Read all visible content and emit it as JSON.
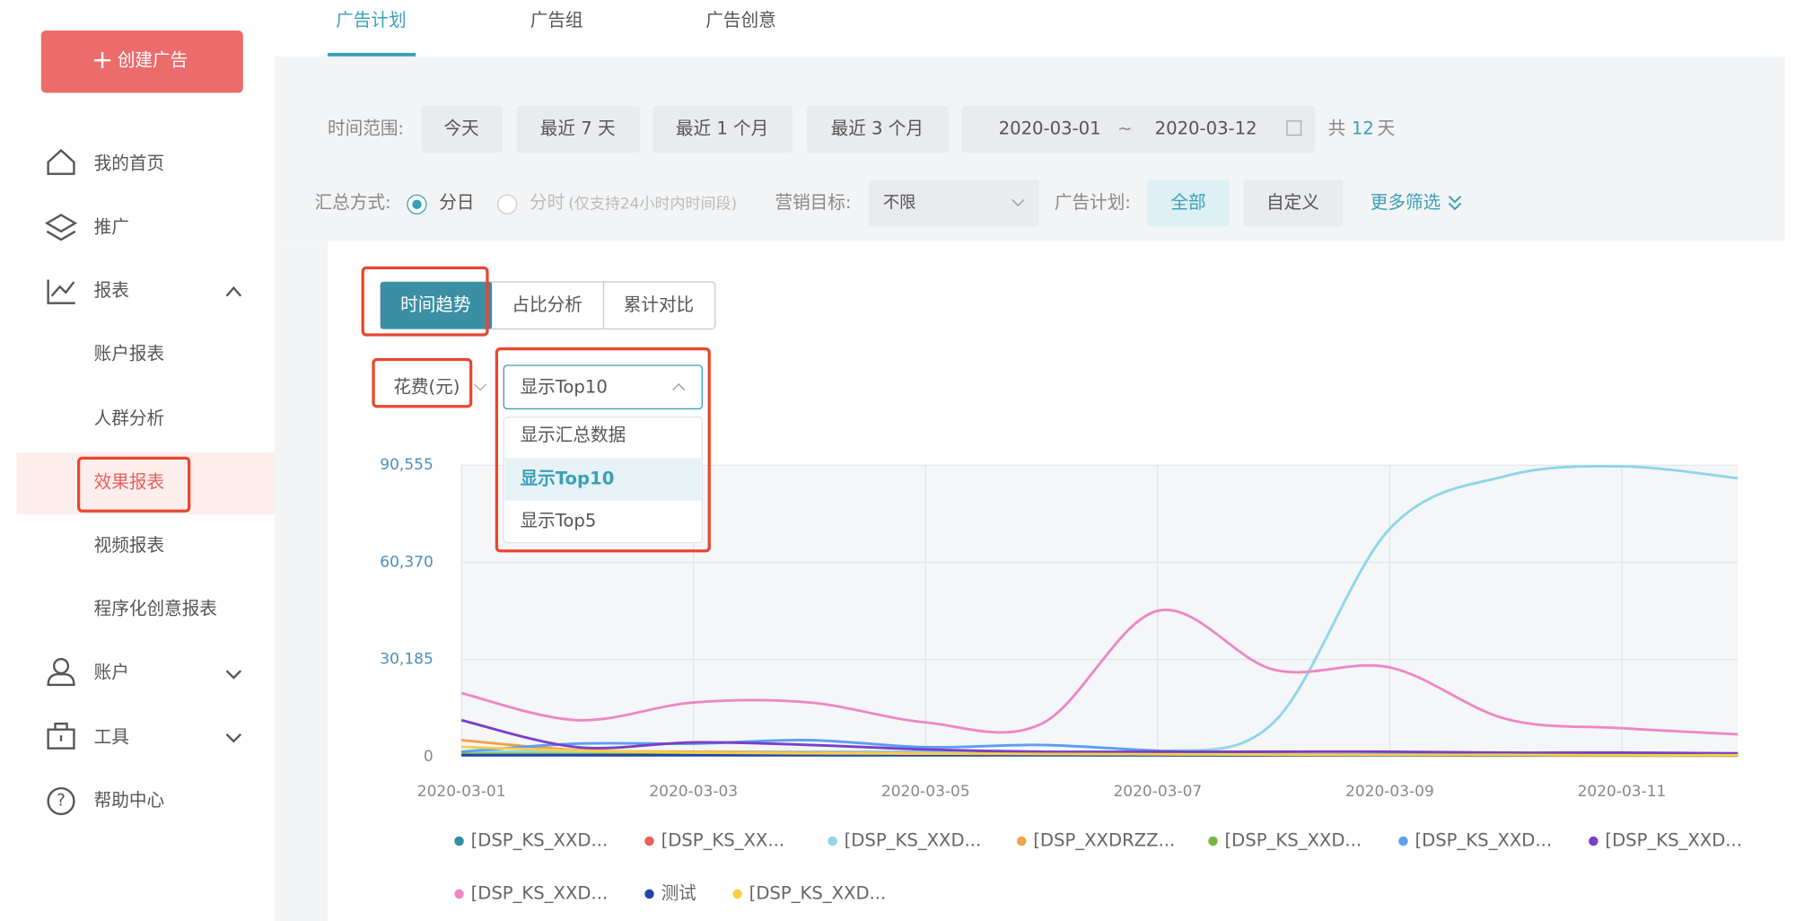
{
  "sidebar": {
    "create_button": "创建广告",
    "menu": [
      "我的首页",
      "推广",
      "报表",
      "账户报表",
      "人群分析",
      "效果报表",
      "视频报表",
      "程序化创意报表",
      "账户",
      "工具",
      "帮助中心"
    ]
  },
  "tabs": [
    "广告计划",
    "广告组",
    "广告创意"
  ],
  "filters": {
    "time_range_label": "时间范围:",
    "time_buttons": [
      "今天",
      "最近 7 天",
      "最近 1 个月",
      "最近 3 个月"
    ],
    "start_date": "2020-03-01",
    "separator": "~",
    "end_date": "2020-03-12",
    "total_prefix": "共",
    "total_days": 12,
    "total_suffix": "天",
    "summary_label": "汇总方式:",
    "summary_options": [
      "分日",
      "分时"
    ],
    "hourly_note": "(仅支持24小时内时间段)",
    "goal_label": "营销目标:",
    "goal_value": "不限",
    "plan_label": "广告计划:",
    "plan_options": [
      "全部",
      "自定义"
    ],
    "more_filters": "更多筛选"
  },
  "analysis_tabs": [
    "时间趋势",
    "占比分析",
    "累计对比"
  ],
  "metric": "花费(元)",
  "display_select": {
    "value": "显示Top10",
    "options": [
      "显示汇总数据",
      "显示Top10",
      "显示Top5"
    ]
  },
  "chart_data": {
    "type": "line",
    "categories": [
      "2020-03-01",
      null,
      "2020-03-03",
      null,
      "2020-03-05",
      null,
      "2020-03-07",
      null,
      "2020-03-09",
      null,
      "2020-03-11",
      null
    ],
    "ylim": [
      0,
      90555
    ],
    "yticks": [
      0,
      {
        "value": 30185,
        "label": "30,185"
      },
      {
        "value": 60370,
        "label": "60,370"
      },
      {
        "value": 90555,
        "label": "90,555"
      }
    ],
    "grid": true,
    "series": [
      {
        "name": "[DSP_KS_XXD...",
        "color": "#2f8ea0",
        "values": [
          1200,
          900,
          800,
          700,
          700,
          600,
          600,
          500,
          500,
          500,
          400,
          400
        ]
      },
      {
        "name": "[DSP_KS_XX...",
        "color": "#e8605a",
        "values": [
          1000,
          800,
          700,
          600,
          600,
          500,
          500,
          400,
          400,
          400,
          300,
          300
        ]
      },
      {
        "name": "[DSP_KS_XXD...",
        "color": "#8fd6e6",
        "values": [
          1500,
          1500,
          1500,
          1500,
          1500,
          1500,
          1500,
          10600,
          70800,
          87200,
          90200,
          86500
        ]
      },
      {
        "name": "[DSP_XXDRZZ...",
        "color": "#f5a04a",
        "values": [
          5100,
          2000,
          1500,
          1200,
          1000,
          900,
          800,
          700,
          600,
          500,
          500,
          400
        ]
      },
      {
        "name": "[DSP_KS_XXD...",
        "color": "#7cb43b",
        "values": [
          800,
          700,
          600,
          600,
          500,
          500,
          400,
          400,
          400,
          300,
          300,
          300
        ]
      },
      {
        "name": "[DSP_KS_XXD...",
        "color": "#5b9ef2",
        "values": [
          1500,
          4000,
          4000,
          5100,
          2900,
          3600,
          1800,
          700,
          700,
          700,
          700,
          700
        ]
      },
      {
        "name": "[DSP_KS_XXD...",
        "color": "#7a3fc8",
        "values": [
          11300,
          2900,
          4400,
          3600,
          2200,
          1500,
          1500,
          1500,
          1500,
          1200,
          1200,
          1000
        ]
      },
      {
        "name": "[DSP_KS_XXD...",
        "color": "#ec88c4",
        "values": [
          19700,
          11300,
          16800,
          16800,
          10600,
          10200,
          45300,
          27000,
          27700,
          11700,
          8800,
          6900
        ]
      },
      {
        "name": "测试",
        "color": "#2246a8",
        "values": [
          400,
          400,
          400,
          400,
          400,
          400,
          400,
          400,
          400,
          400,
          400,
          400
        ]
      },
      {
        "name": "[DSP_KS_XXD...",
        "color": "#f5cf4a",
        "values": [
          3000,
          1800,
          1200,
          1000,
          900,
          800,
          700,
          600,
          500,
          500,
          400,
          400
        ]
      }
    ]
  }
}
